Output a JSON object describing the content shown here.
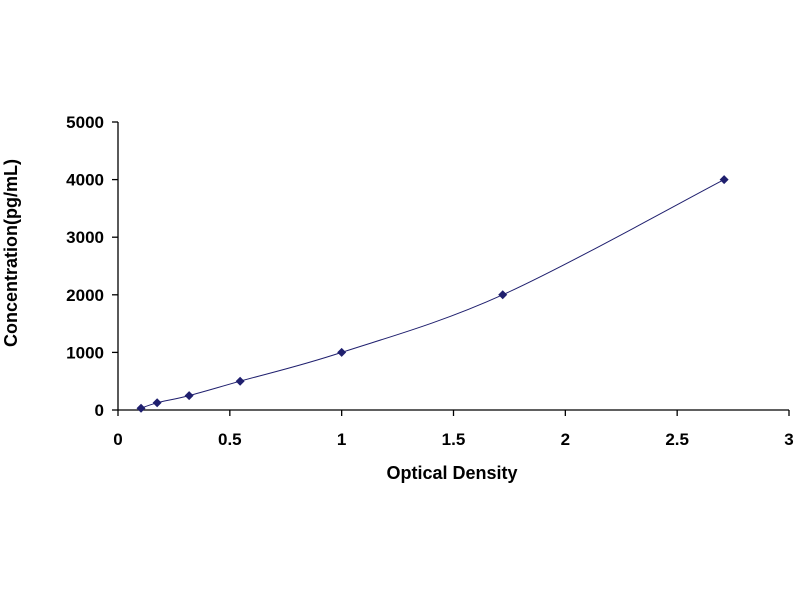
{
  "chart_data": {
    "type": "scatter",
    "title": "",
    "xlabel": "Optical Density",
    "ylabel": "Concentration(pg/mL)",
    "xlim": [
      0,
      3
    ],
    "ylim": [
      0,
      5000
    ],
    "x_ticks": [
      "0",
      "0.5",
      "1",
      "1.5",
      "2",
      "2.5",
      "3"
    ],
    "y_ticks": [
      "0",
      "1000",
      "2000",
      "3000",
      "4000",
      "5000"
    ],
    "grid": false,
    "legend": "none",
    "series": [
      {
        "points": [
          {
            "x": 0.103,
            "y": 31.2
          },
          {
            "x": 0.175,
            "y": 125
          },
          {
            "x": 0.318,
            "y": 250
          },
          {
            "x": 0.546,
            "y": 500
          },
          {
            "x": 1.0,
            "y": 1000
          },
          {
            "x": 1.72,
            "y": 2000
          },
          {
            "x": 2.71,
            "y": 4000
          }
        ],
        "color": "#1f1f6e",
        "marker": "diamond",
        "line": "smooth-fit"
      }
    ]
  }
}
